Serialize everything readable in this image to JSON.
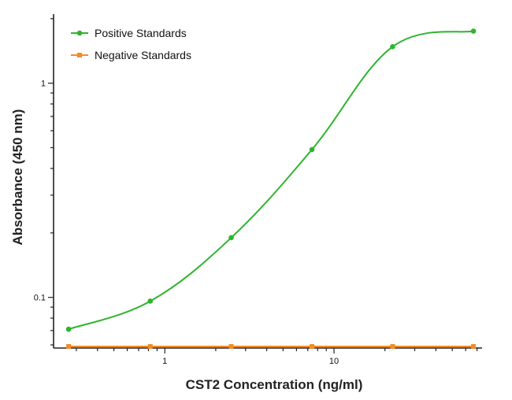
{
  "chart_data": {
    "type": "line",
    "title": "",
    "xlabel": "CST2 Concentration (ng/ml)",
    "ylabel": "Absorbance (450 nm)",
    "x_scale": "log",
    "y_scale": "log",
    "xlim": [
      0.22,
      75
    ],
    "ylim": [
      0.058,
      2.1
    ],
    "x_ticks": [
      {
        "value": 1,
        "label": "1"
      },
      {
        "value": 10,
        "label": "10"
      }
    ],
    "y_ticks": [
      {
        "value": 0.1,
        "label": "0.1"
      },
      {
        "value": 1,
        "label": "1"
      }
    ],
    "grid": false,
    "legend_position": "top-left",
    "series": [
      {
        "name": "Positive Standards",
        "color": "#2db52d",
        "marker": "circle",
        "x": [
          0.27,
          0.82,
          2.47,
          7.41,
          22.2,
          66.7
        ],
        "y": [
          0.071,
          0.096,
          0.19,
          0.49,
          1.48,
          1.75
        ]
      },
      {
        "name": "Negative Standards",
        "color": "#f28c28",
        "marker": "square",
        "x": [
          0.27,
          0.82,
          2.47,
          7.41,
          22.2,
          66.7
        ],
        "y": [
          0.059,
          0.059,
          0.059,
          0.059,
          0.059,
          0.059
        ]
      }
    ]
  }
}
